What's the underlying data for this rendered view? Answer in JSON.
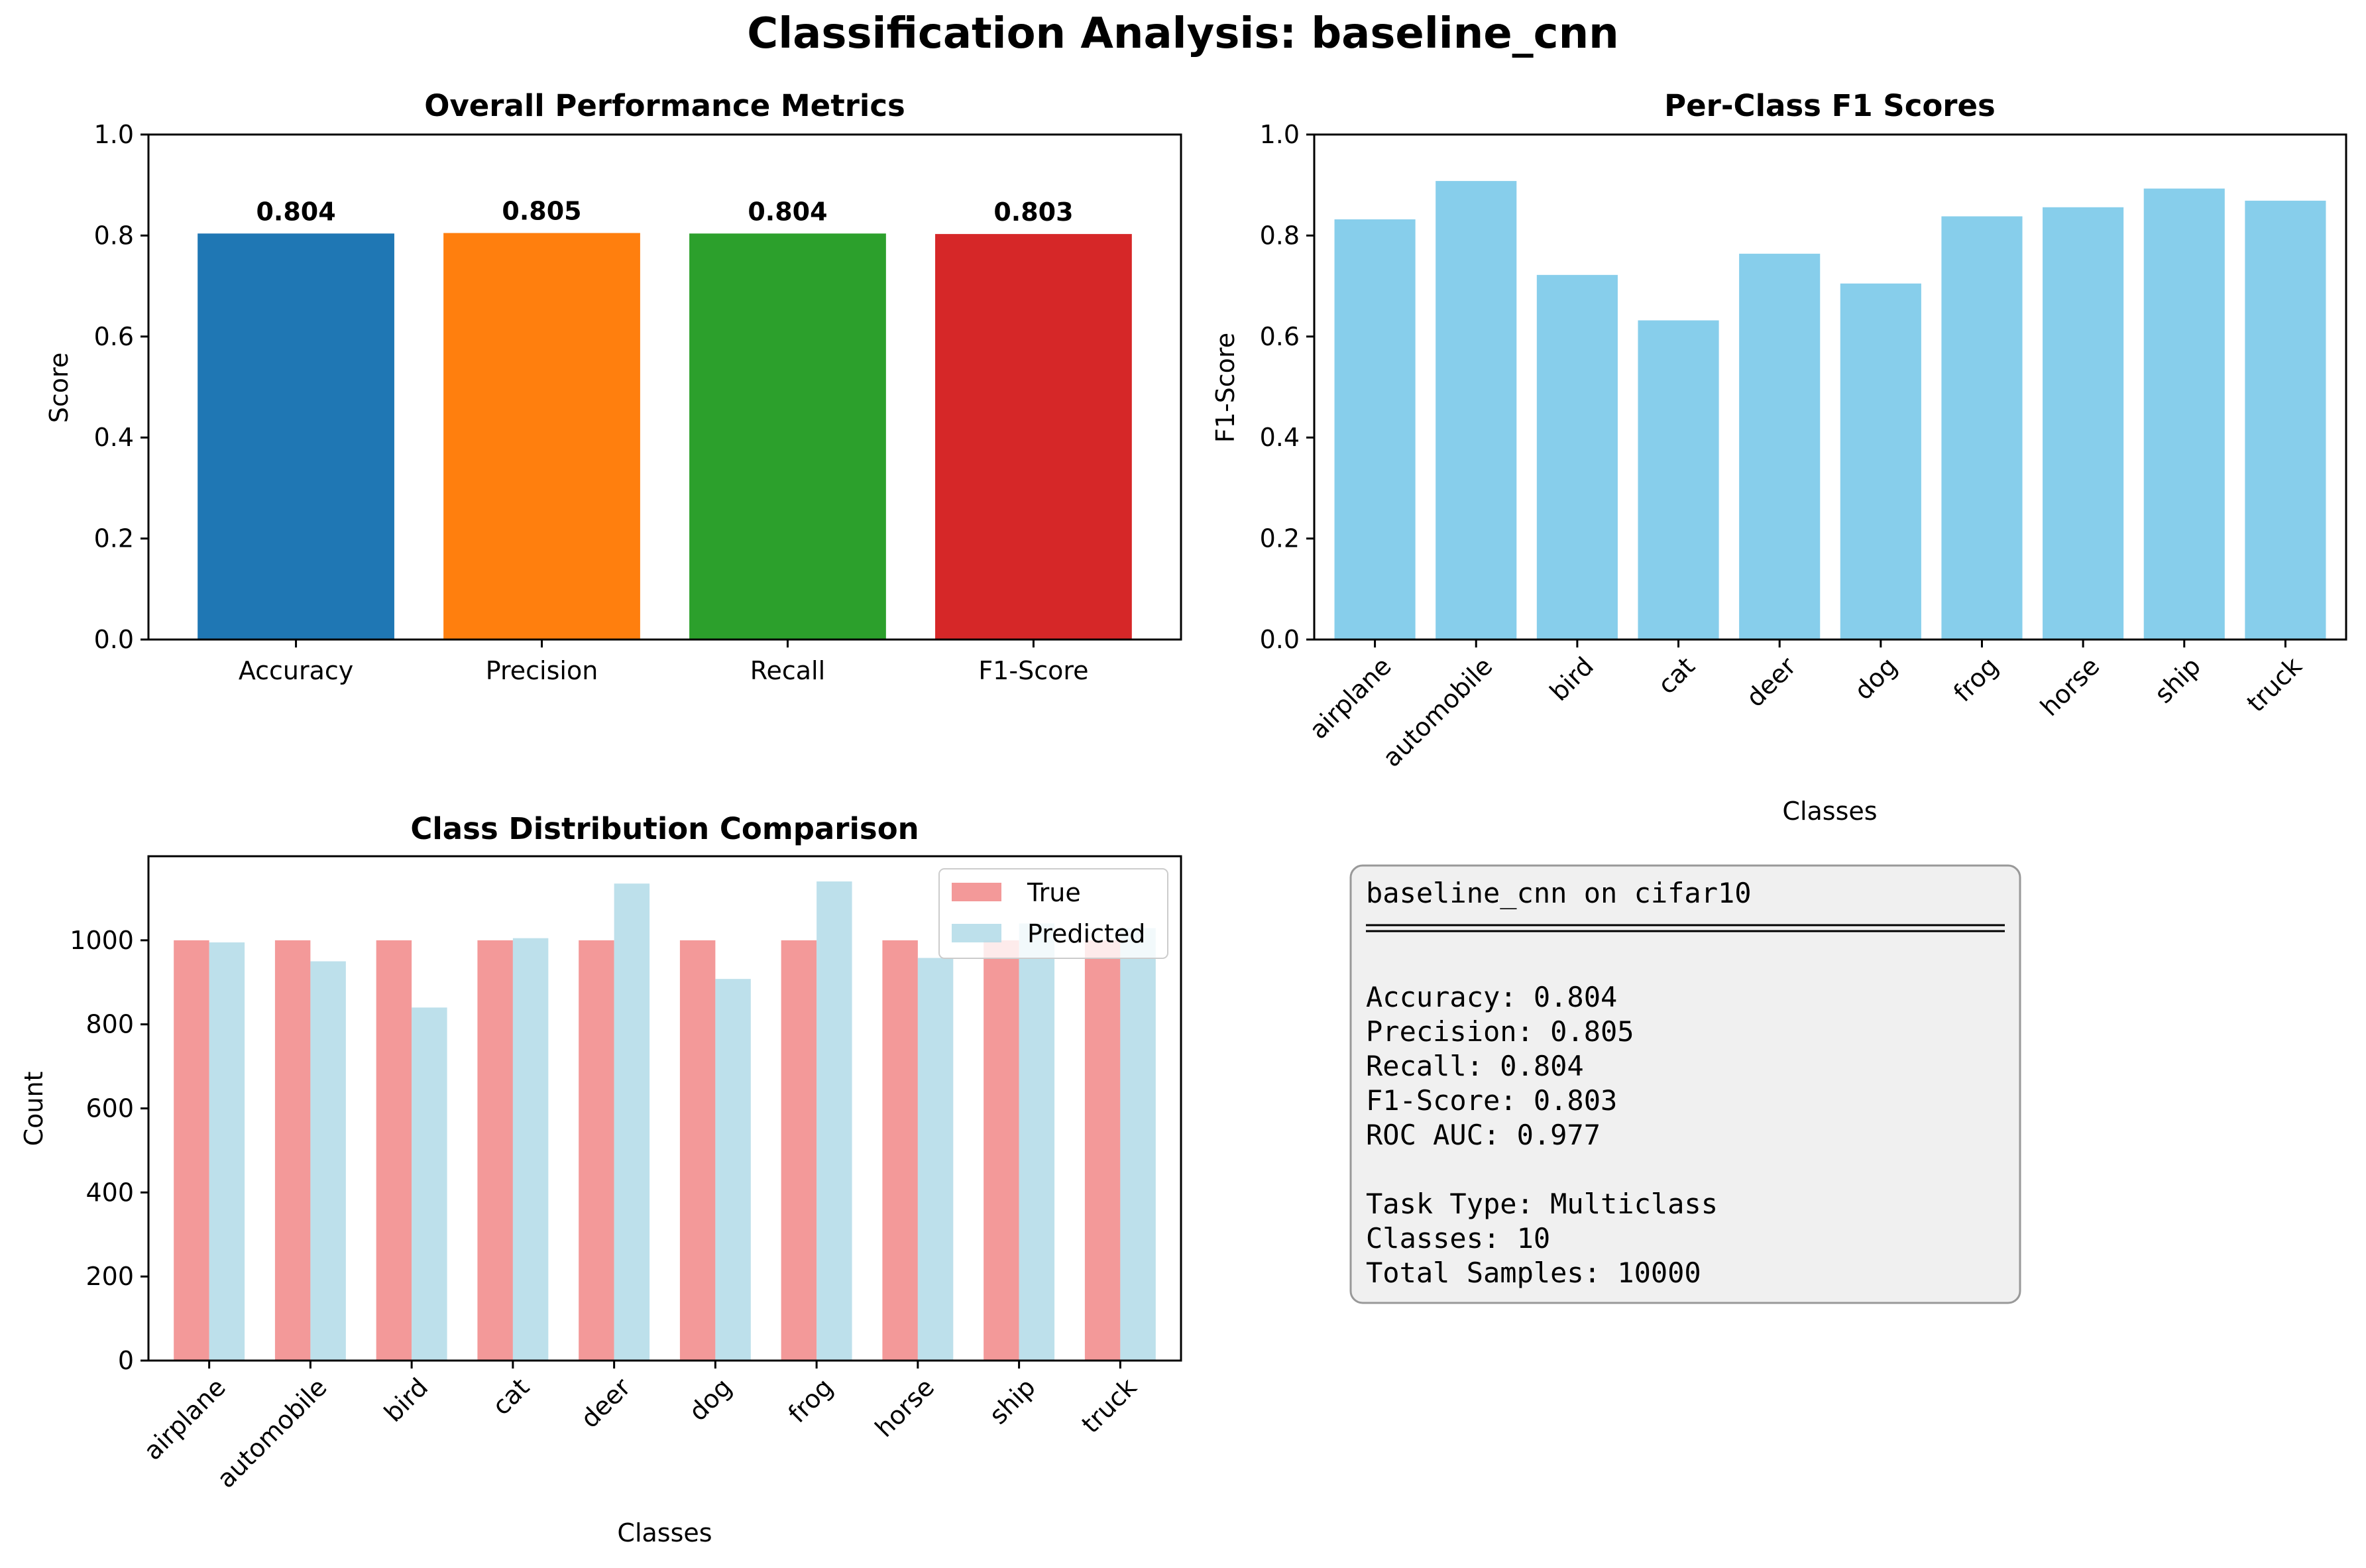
{
  "suptitle": "Classification Analysis: baseline_cnn",
  "chart_data": [
    {
      "type": "bar",
      "title": "Overall Performance Metrics",
      "xlabel": "",
      "ylabel": "Score",
      "ylim": [
        0,
        1.0
      ],
      "yticks": [
        "0.0",
        "0.2",
        "0.4",
        "0.6",
        "0.8",
        "1.0"
      ],
      "categories": [
        "Accuracy",
        "Precision",
        "Recall",
        "F1-Score"
      ],
      "values": [
        0.804,
        0.805,
        0.804,
        0.803
      ],
      "value_labels": [
        "0.804",
        "0.805",
        "0.804",
        "0.803"
      ],
      "colors": [
        "#1f77b4",
        "#ff7f0e",
        "#2ca02c",
        "#d62728"
      ],
      "grid": false
    },
    {
      "type": "bar",
      "title": "Per-Class F1 Scores",
      "xlabel": "Classes",
      "ylabel": "F1-Score",
      "ylim": [
        0,
        1.0
      ],
      "yticks": [
        "0.0",
        "0.2",
        "0.4",
        "0.6",
        "0.8",
        "1.0"
      ],
      "categories": [
        "airplane",
        "automobile",
        "bird",
        "cat",
        "deer",
        "dog",
        "frog",
        "horse",
        "ship",
        "truck"
      ],
      "values": [
        0.832,
        0.908,
        0.722,
        0.632,
        0.764,
        0.705,
        0.838,
        0.856,
        0.893,
        0.869
      ],
      "color": "#87ceeb",
      "grid": false
    },
    {
      "type": "bar",
      "title": "Class Distribution Comparison",
      "xlabel": "Classes",
      "ylabel": "Count",
      "ylim": [
        0,
        1200
      ],
      "yticks": [
        "0",
        "200",
        "400",
        "600",
        "800",
        "1000"
      ],
      "categories": [
        "airplane",
        "automobile",
        "bird",
        "cat",
        "deer",
        "dog",
        "frog",
        "horse",
        "ship",
        "truck"
      ],
      "series": [
        {
          "name": "True",
          "color": "#f08080",
          "values": [
            1000,
            1000,
            1000,
            1000,
            1000,
            1000,
            1000,
            1000,
            1000,
            1000
          ]
        },
        {
          "name": "Predicted",
          "color": "#add8e6",
          "values": [
            995,
            950,
            840,
            1005,
            1135,
            908,
            1140,
            958,
            1040,
            1029
          ]
        }
      ],
      "legend": "top-right",
      "grid": false
    }
  ],
  "summary_box": {
    "title": "baseline_cnn on cifar10",
    "lines": [
      "Accuracy: 0.804",
      "Precision: 0.805",
      "Recall: 0.804",
      "F1-Score: 0.803",
      "ROC AUC: 0.977",
      "",
      "Task Type: Multiclass",
      "Classes: 10",
      "Total Samples: 10000"
    ]
  }
}
